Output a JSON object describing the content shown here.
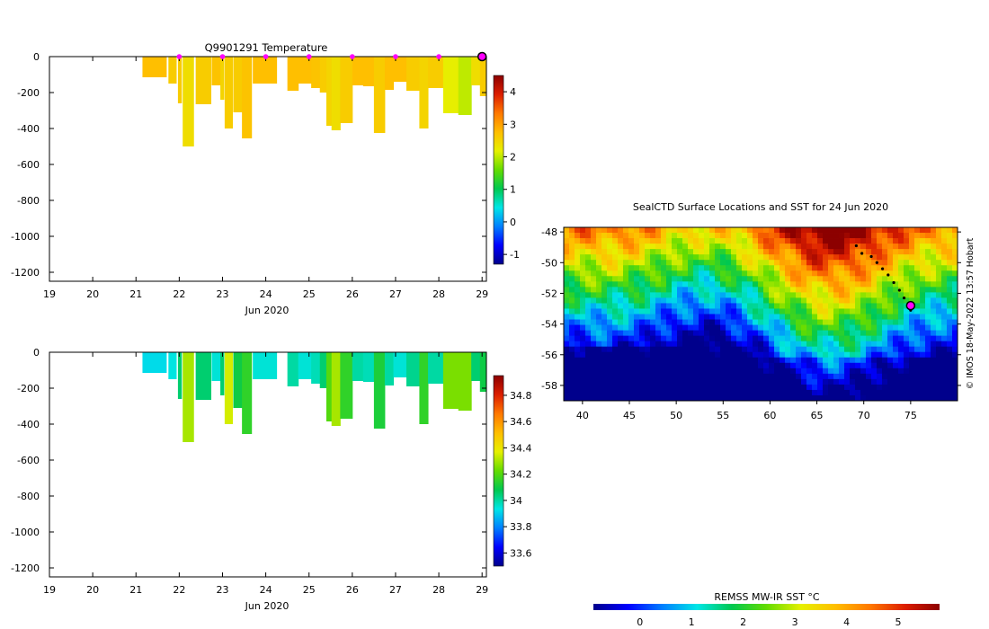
{
  "chart_data": [
    {
      "type": "heatmap",
      "title": "Q9901291  Temperature",
      "variable": "temperature",
      "xlabel": "Jun 2020",
      "xlim": [
        19,
        29.1
      ],
      "xticks": [
        19,
        20,
        21,
        22,
        23,
        24,
        25,
        26,
        27,
        28,
        29
      ],
      "ylim": [
        -1250,
        0
      ],
      "yticks": [
        0,
        -200,
        -400,
        -600,
        -800,
        -1000,
        -1200
      ],
      "colorbar": {
        "min": -1.3,
        "max": 4.5,
        "ticks": [
          -1,
          0,
          1,
          2,
          3,
          4
        ]
      },
      "surface_markers": [
        22,
        23,
        24,
        25,
        26,
        27,
        28
      ],
      "marker_color": "#ff00ff",
      "profiles": [
        {
          "t": 21.15,
          "w": 0.55,
          "depth": 115,
          "value": 2.75
        },
        {
          "t": 21.75,
          "w": 0.18,
          "depth": 150,
          "value": 2.6
        },
        {
          "t": 21.97,
          "w": 0.08,
          "depth": 260,
          "value": 2.6
        },
        {
          "t": 22.08,
          "w": 0.25,
          "depth": 500,
          "value": 2.4
        },
        {
          "t": 22.38,
          "w": 0.35,
          "depth": 265,
          "value": 2.6
        },
        {
          "t": 22.75,
          "w": 0.2,
          "depth": 160,
          "value": 2.7
        },
        {
          "t": 22.95,
          "w": 0.08,
          "depth": 240,
          "value": 2.5
        },
        {
          "t": 23.05,
          "w": 0.18,
          "depth": 400,
          "value": 2.6
        },
        {
          "t": 23.25,
          "w": 0.2,
          "depth": 310,
          "value": 2.6
        },
        {
          "t": 23.45,
          "w": 0.22,
          "depth": 455,
          "value": 2.7
        },
        {
          "t": 23.7,
          "w": 0.55,
          "depth": 150,
          "value": 2.75
        },
        {
          "t": 24.5,
          "w": 0.25,
          "depth": 190,
          "value": 2.75
        },
        {
          "t": 24.75,
          "w": 0.3,
          "depth": 150,
          "value": 2.75
        },
        {
          "t": 25.05,
          "w": 0.2,
          "depth": 175,
          "value": 2.7
        },
        {
          "t": 25.25,
          "w": 0.15,
          "depth": 200,
          "value": 2.6
        },
        {
          "t": 25.4,
          "w": 0.12,
          "depth": 385,
          "value": 2.5
        },
        {
          "t": 25.52,
          "w": 0.2,
          "depth": 410,
          "value": 2.4
        },
        {
          "t": 25.72,
          "w": 0.28,
          "depth": 370,
          "value": 2.6
        },
        {
          "t": 26.0,
          "w": 0.25,
          "depth": 160,
          "value": 2.75
        },
        {
          "t": 26.25,
          "w": 0.25,
          "depth": 165,
          "value": 2.75
        },
        {
          "t": 26.5,
          "w": 0.25,
          "depth": 425,
          "value": 2.6
        },
        {
          "t": 26.75,
          "w": 0.2,
          "depth": 185,
          "value": 2.75
        },
        {
          "t": 26.95,
          "w": 0.3,
          "depth": 140,
          "value": 2.75
        },
        {
          "t": 27.25,
          "w": 0.3,
          "depth": 190,
          "value": 2.6
        },
        {
          "t": 27.55,
          "w": 0.2,
          "depth": 400,
          "value": 2.5
        },
        {
          "t": 27.75,
          "w": 0.35,
          "depth": 175,
          "value": 2.6
        },
        {
          "t": 28.1,
          "w": 0.35,
          "depth": 315,
          "value": 2.2
        },
        {
          "t": 28.45,
          "w": 0.3,
          "depth": 325,
          "value": 2.0
        },
        {
          "t": 28.75,
          "w": 0.2,
          "depth": 160,
          "value": 2.4
        },
        {
          "t": 28.95,
          "w": 0.15,
          "depth": 220,
          "value": 2.6
        }
      ]
    },
    {
      "type": "heatmap",
      "title": "",
      "variable": "salinity",
      "xlabel": "Jun 2020",
      "xlim": [
        19,
        29.1
      ],
      "xticks": [
        19,
        20,
        21,
        22,
        23,
        24,
        25,
        26,
        27,
        28,
        29
      ],
      "ylim": [
        -1250,
        0
      ],
      "yticks": [
        0,
        -200,
        -400,
        -600,
        -800,
        -1000,
        -1200
      ],
      "colorbar": {
        "min": 33.5,
        "max": 34.95,
        "ticks": [
          33.6,
          33.8,
          34,
          34.2,
          34.4,
          34.6,
          34.8
        ]
      },
      "profiles": [
        {
          "t": 21.15,
          "w": 0.55,
          "depth": 115,
          "value": 33.92
        },
        {
          "t": 21.75,
          "w": 0.18,
          "depth": 150,
          "value": 33.94
        },
        {
          "t": 21.97,
          "w": 0.08,
          "depth": 260,
          "value": 34.05
        },
        {
          "t": 22.08,
          "w": 0.25,
          "depth": 500,
          "value": 34.3
        },
        {
          "t": 22.38,
          "w": 0.35,
          "depth": 265,
          "value": 34.05
        },
        {
          "t": 22.75,
          "w": 0.2,
          "depth": 160,
          "value": 33.95
        },
        {
          "t": 22.95,
          "w": 0.08,
          "depth": 240,
          "value": 34.05
        },
        {
          "t": 23.05,
          "w": 0.18,
          "depth": 400,
          "value": 34.35
        },
        {
          "t": 23.25,
          "w": 0.2,
          "depth": 310,
          "value": 34.1
        },
        {
          "t": 23.45,
          "w": 0.22,
          "depth": 455,
          "value": 34.15
        },
        {
          "t": 23.7,
          "w": 0.55,
          "depth": 150,
          "value": 33.95
        },
        {
          "t": 24.5,
          "w": 0.25,
          "depth": 190,
          "value": 34.0
        },
        {
          "t": 24.75,
          "w": 0.3,
          "depth": 150,
          "value": 33.95
        },
        {
          "t": 25.05,
          "w": 0.2,
          "depth": 175,
          "value": 33.98
        },
        {
          "t": 25.25,
          "w": 0.15,
          "depth": 200,
          "value": 34.05
        },
        {
          "t": 25.4,
          "w": 0.12,
          "depth": 385,
          "value": 34.2
        },
        {
          "t": 25.52,
          "w": 0.2,
          "depth": 410,
          "value": 34.3
        },
        {
          "t": 25.72,
          "w": 0.28,
          "depth": 370,
          "value": 34.15
        },
        {
          "t": 26.0,
          "w": 0.25,
          "depth": 160,
          "value": 34.0
        },
        {
          "t": 26.25,
          "w": 0.25,
          "depth": 165,
          "value": 33.98
        },
        {
          "t": 26.5,
          "w": 0.25,
          "depth": 425,
          "value": 34.12
        },
        {
          "t": 26.75,
          "w": 0.2,
          "depth": 185,
          "value": 34.0
        },
        {
          "t": 26.95,
          "w": 0.3,
          "depth": 140,
          "value": 33.95
        },
        {
          "t": 27.25,
          "w": 0.3,
          "depth": 190,
          "value": 34.02
        },
        {
          "t": 27.55,
          "w": 0.2,
          "depth": 400,
          "value": 34.15
        },
        {
          "t": 27.75,
          "w": 0.35,
          "depth": 175,
          "value": 34.0
        },
        {
          "t": 28.1,
          "w": 0.35,
          "depth": 315,
          "value": 34.25
        },
        {
          "t": 28.45,
          "w": 0.3,
          "depth": 325,
          "value": 34.25
        },
        {
          "t": 28.75,
          "w": 0.2,
          "depth": 160,
          "value": 34.05
        },
        {
          "t": 28.95,
          "w": 0.15,
          "depth": 220,
          "value": 34.1
        }
      ]
    },
    {
      "type": "heatmap",
      "title": "SealCTD Surface Locations and SST for 24 Jun 2020",
      "variable": "sst",
      "xlim": [
        38,
        80
      ],
      "ylim": [
        -59,
        -47.7
      ],
      "xticks": [
        40,
        45,
        50,
        55,
        60,
        65,
        70,
        75
      ],
      "yticks": [
        -48,
        -50,
        -52,
        -54,
        -56,
        -58
      ],
      "colorbar_label": "REMSS MW-IR SST °C",
      "colorbar": {
        "min": -0.9,
        "max": 5.8,
        "ticks": [
          0,
          1,
          2,
          3,
          4,
          5
        ]
      },
      "track": [
        {
          "lon": 69.2,
          "lat": -48.9
        },
        {
          "lon": 69.8,
          "lat": -49.4
        },
        {
          "lon": 70.8,
          "lat": -49.6
        },
        {
          "lon": 71.4,
          "lat": -50.0
        },
        {
          "lon": 72.0,
          "lat": -50.4
        },
        {
          "lon": 72.6,
          "lat": -50.8
        },
        {
          "lon": 73.2,
          "lat": -51.3
        },
        {
          "lon": 73.8,
          "lat": -51.8
        },
        {
          "lon": 74.3,
          "lat": -52.3
        },
        {
          "lon": 74.7,
          "lat": -52.8
        },
        {
          "lon": 75.0,
          "lat": -53.1
        }
      ],
      "current_position": {
        "lon": 75.0,
        "lat": -52.8
      }
    }
  ],
  "credit": "© IMOS 18-May-2022 13:57 Hobart"
}
